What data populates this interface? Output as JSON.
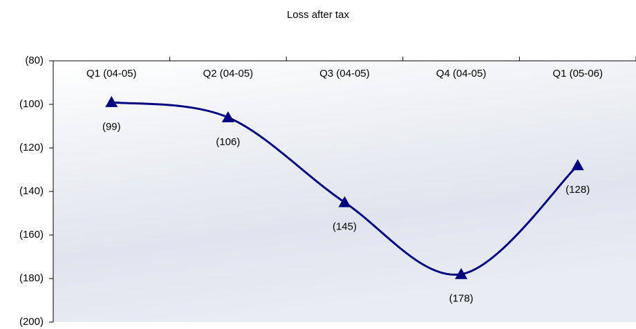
{
  "chart_data": {
    "type": "line",
    "title": "Loss after tax",
    "categories": [
      "Q1 (04-05)",
      "Q2 (04-05)",
      "Q3 (04-05)",
      "Q4 (04-05)",
      "Q1 (05-06)"
    ],
    "series": [
      {
        "name": "Loss after tax",
        "color": "#000080",
        "values": [
          -99,
          -106,
          -145,
          -178,
          -128
        ],
        "value_labels": [
          "(99)",
          "(106)",
          "(145)",
          "(178)",
          "(128)"
        ]
      }
    ],
    "ylim": [
      -200,
      -80
    ],
    "yticks": [
      {
        "value": -80,
        "label": "(80)"
      },
      {
        "value": -100,
        "label": "(100)"
      },
      {
        "value": -120,
        "label": "(120)"
      },
      {
        "value": -140,
        "label": "(140)"
      },
      {
        "value": -160,
        "label": "(160)"
      },
      {
        "value": -180,
        "label": "(180)"
      },
      {
        "value": -200,
        "label": "(200)"
      }
    ],
    "smooth": true,
    "marker": "triangle"
  }
}
